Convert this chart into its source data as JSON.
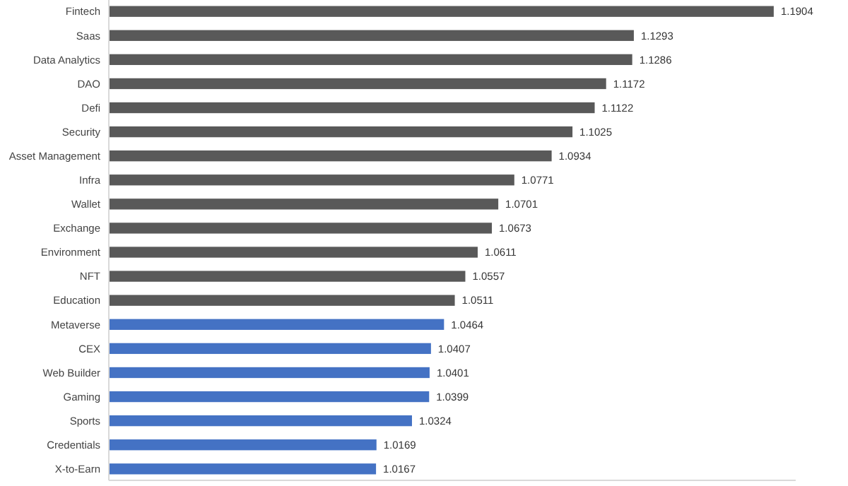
{
  "chart_data": {
    "type": "bar",
    "orientation": "horizontal",
    "categories": [
      "Fintech",
      "Saas",
      "Data Analytics",
      "DAO",
      "Defi",
      "Security",
      "Asset Management",
      "Infra",
      "Wallet",
      "Exchange",
      "Environment",
      "NFT",
      "Education",
      "Metaverse",
      "CEX",
      "Web Builder",
      "Gaming",
      "Sports",
      "Credentials",
      "X-to-Earn"
    ],
    "values": [
      1.1904,
      1.1293,
      1.1286,
      1.1172,
      1.1122,
      1.1025,
      1.0934,
      1.0771,
      1.0701,
      1.0673,
      1.0611,
      1.0557,
      1.0511,
      1.0464,
      1.0407,
      1.0401,
      1.0399,
      1.0324,
      1.0169,
      1.0167
    ],
    "colors": [
      "#595959",
      "#595959",
      "#595959",
      "#595959",
      "#595959",
      "#595959",
      "#595959",
      "#595959",
      "#595959",
      "#595959",
      "#595959",
      "#595959",
      "#595959",
      "#4472c4",
      "#4472c4",
      "#4472c4",
      "#4472c4",
      "#4472c4",
      "#4472c4",
      "#4472c4"
    ],
    "xlim": [
      0.9,
      1.2
    ],
    "tick_labels": "y",
    "data_labels": true
  }
}
